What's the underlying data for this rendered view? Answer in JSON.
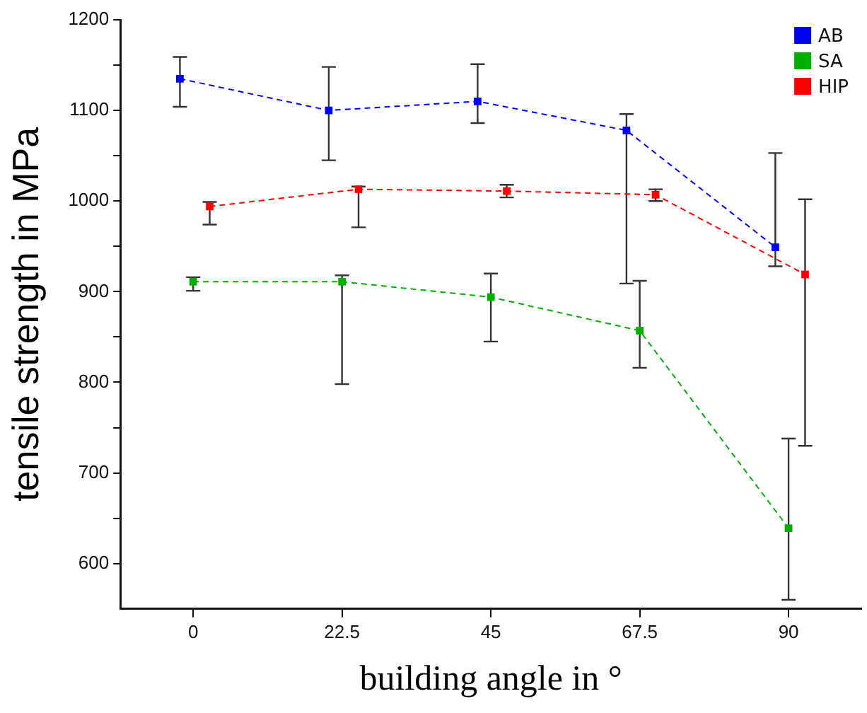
{
  "chart_data": {
    "type": "line",
    "xlabel": "building angle in °",
    "ylabel": "tensile strength in MPa",
    "xlim": [
      -11,
      101
    ],
    "xticks": [
      0,
      22.5,
      45,
      67.5,
      90
    ],
    "ylim": [
      550,
      1200
    ],
    "yticks": [
      {
        "value": 600,
        "label": "600"
      },
      {
        "value": 650,
        "label": null
      },
      {
        "value": 700,
        "label": "700"
      },
      {
        "value": 750,
        "label": null
      },
      {
        "value": 800,
        "label": "800"
      },
      {
        "value": 850,
        "label": null
      },
      {
        "value": 900,
        "label": "900"
      },
      {
        "value": 950,
        "label": null
      },
      {
        "value": 1000,
        "label": "1000"
      },
      {
        "value": 1050,
        "label": null
      },
      {
        "value": 1100,
        "label": "1100"
      },
      {
        "value": 1150,
        "label": null
      },
      {
        "value": 1200,
        "label": "1200"
      }
    ],
    "grid": false,
    "legend": "top right",
    "marker": "square",
    "line_style": "dashed",
    "series": [
      {
        "name": "AB",
        "color": "#0000ff",
        "x": [
          -2,
          20.5,
          43,
          65.5,
          88
        ],
        "values": [
          1135,
          1100,
          1110,
          1078,
          949
        ],
        "errors": [
          [
            1104,
            1159
          ],
          [
            1045,
            1148
          ],
          [
            1086,
            1151
          ],
          [
            909,
            1096
          ],
          [
            928,
            1053
          ]
        ]
      },
      {
        "name": "SA",
        "color": "#00b000",
        "x": [
          0,
          22.5,
          45,
          67.5,
          90
        ],
        "values": [
          911,
          911,
          894,
          857,
          639
        ],
        "errors": [
          [
            901,
            916
          ],
          [
            798,
            918
          ],
          [
            845,
            920
          ],
          [
            816,
            912
          ],
          [
            560,
            738
          ]
        ]
      },
      {
        "name": "HIP",
        "color": "#ff0000",
        "x": [
          2.5,
          25,
          47.4,
          69.9,
          92.5
        ],
        "values": [
          994,
          1013,
          1011,
          1007,
          919
        ],
        "errors": [
          [
            974,
            999
          ],
          [
            971,
            1016
          ],
          [
            1004,
            1018
          ],
          [
            1000,
            1013
          ],
          [
            730,
            1002
          ]
        ]
      }
    ]
  }
}
